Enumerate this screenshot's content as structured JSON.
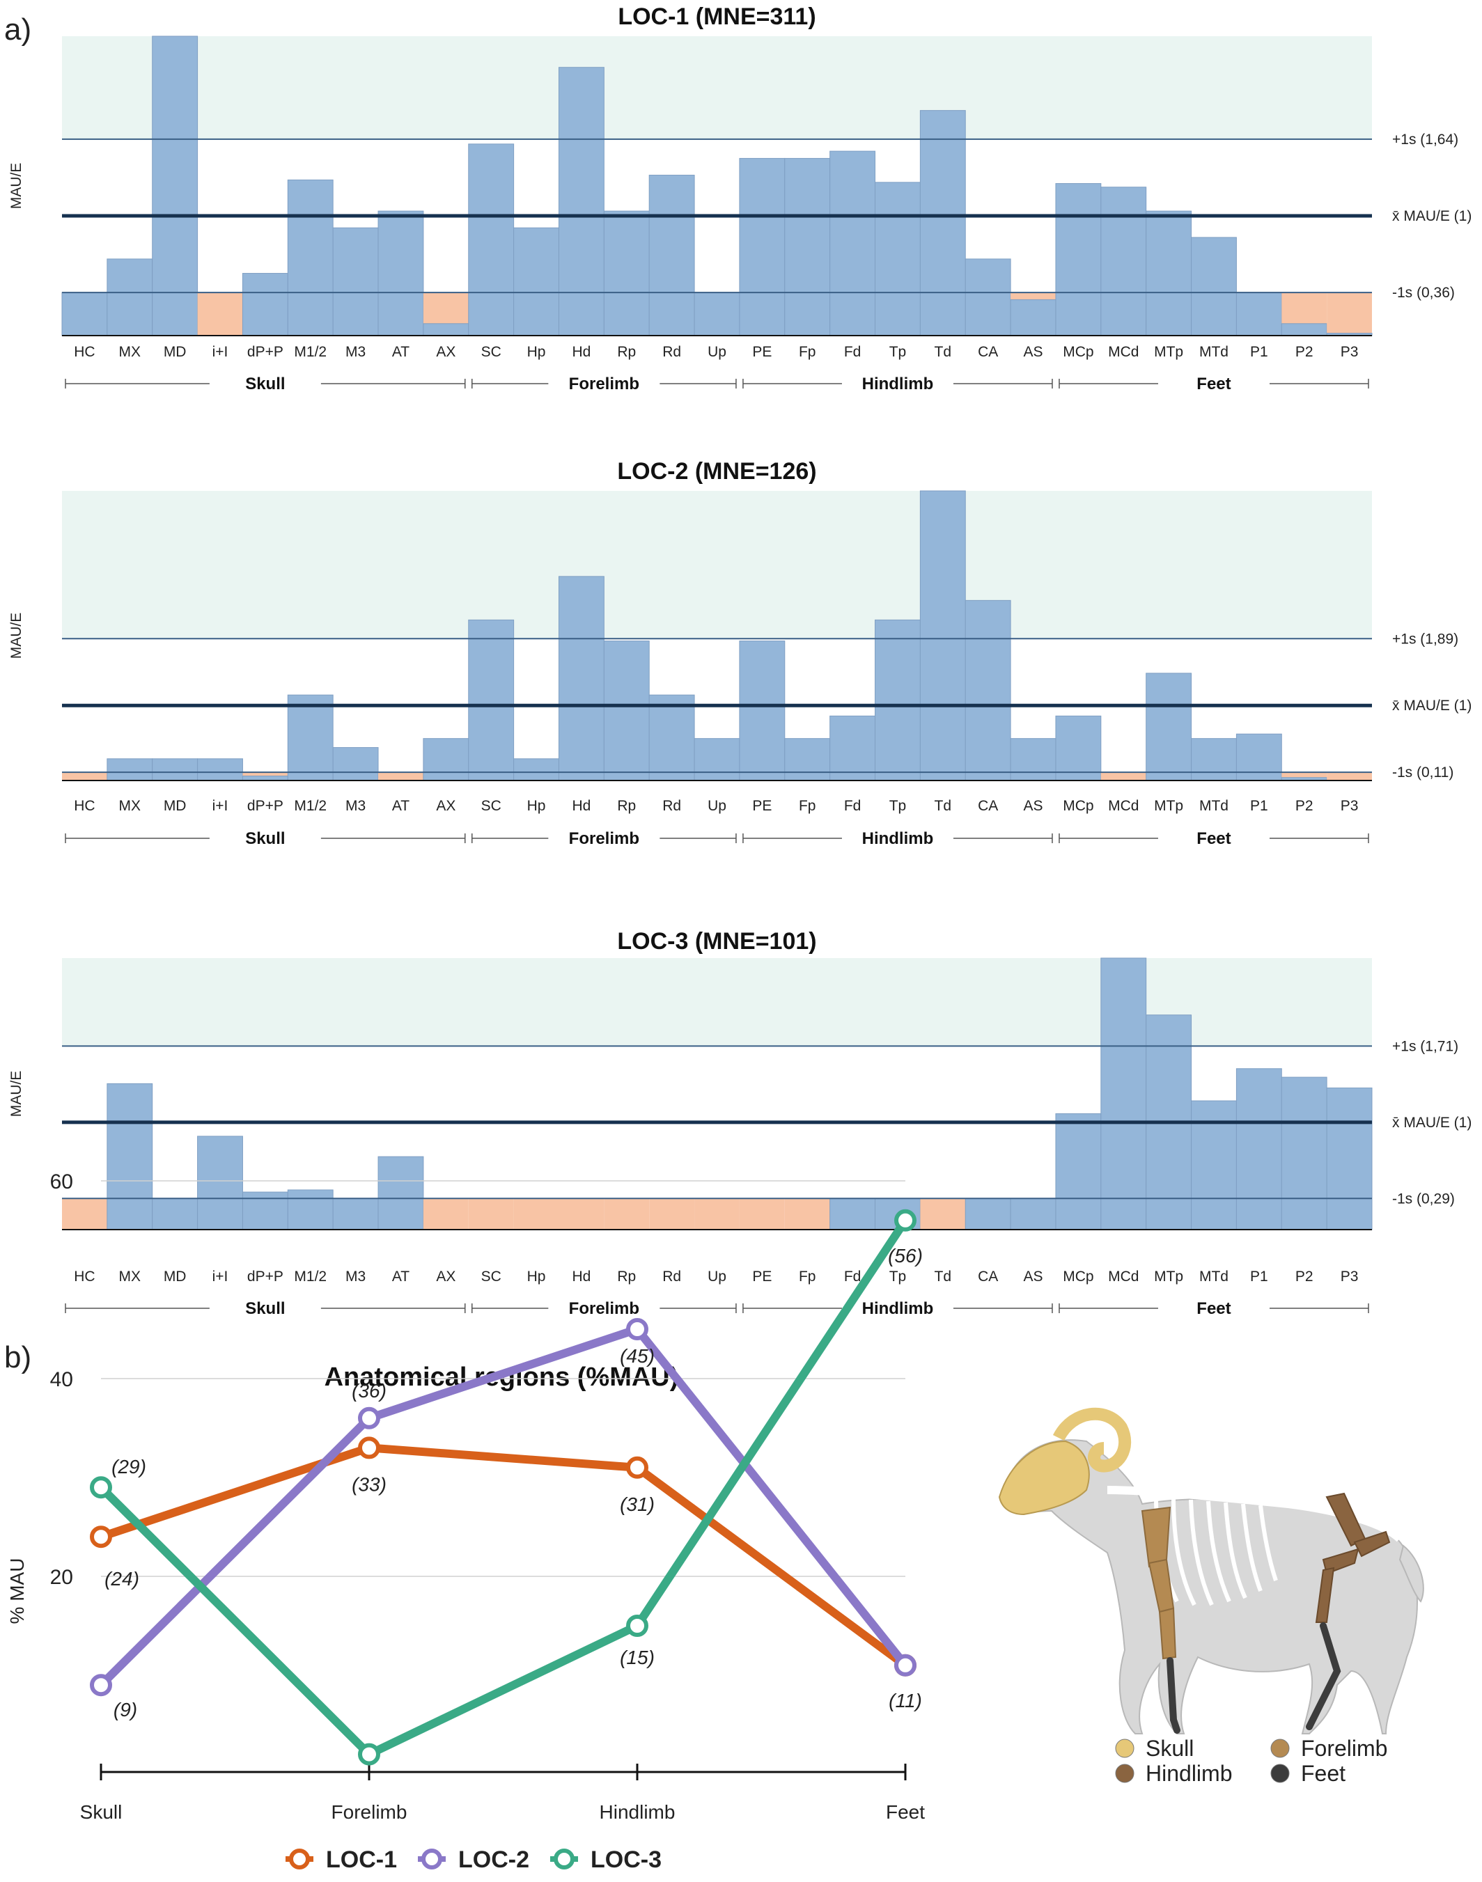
{
  "panel_labels": {
    "a": "a)",
    "b": "b)"
  },
  "colors": {
    "bar": "#94b6d9",
    "bar_stroke": "#7f9fc3",
    "low_bar": "#f8c4a5",
    "band": "#eaf5f2",
    "sd_line": "#3a5f86",
    "mean_line": "#16314f",
    "loc1": "#d8601a",
    "loc2": "#8a78c8",
    "loc3": "#3aaa86",
    "skull": "#e6c878",
    "forelimb": "#b48a52",
    "hindlimb": "#8a6440",
    "feet": "#3c3c3c"
  },
  "chart_data": [
    {
      "type": "bar",
      "title": "LOC-1 (MNE=311)",
      "ylabel": "MAU/E",
      "categories": [
        "HC",
        "MX",
        "MD",
        "i+I",
        "dP+P",
        "M1/2",
        "M3",
        "AT",
        "AX",
        "SC",
        "Hp",
        "Hd",
        "Rp",
        "Rd",
        "Up",
        "PE",
        "Fp",
        "Fd",
        "Tp",
        "Td",
        "CA",
        "AS",
        "MCp",
        "MCd",
        "MTp",
        "MTd",
        "P1",
        "P2",
        "P3"
      ],
      "values": [
        0.36,
        0.64,
        2.5,
        0,
        0.52,
        1.3,
        0.9,
        1.04,
        0.1,
        1.6,
        0.9,
        2.24,
        1.04,
        1.34,
        0.36,
        1.48,
        1.48,
        1.54,
        1.28,
        1.88,
        0.64,
        0.3,
        1.27,
        1.24,
        1.04,
        0.82,
        0.36,
        0.1,
        0.02
      ],
      "below_minus_1s": [
        false,
        false,
        false,
        true,
        false,
        false,
        false,
        false,
        true,
        false,
        false,
        false,
        false,
        false,
        false,
        false,
        false,
        false,
        false,
        false,
        false,
        true,
        false,
        false,
        false,
        false,
        false,
        true,
        true
      ],
      "ylim": [
        0,
        2.5
      ],
      "reference_lines": [
        {
          "label": "+1s (1,64)",
          "value": 1.64
        },
        {
          "label": "x̄ MAU/E (1)",
          "value": 1
        },
        {
          "label": "-1s (0,36)",
          "value": 0.36
        }
      ],
      "regions": [
        "Skull",
        "Forelimb",
        "Hindlimb",
        "Feet"
      ]
    },
    {
      "type": "bar",
      "title": "LOC-2 (MNE=126)",
      "ylabel": "MAU/E",
      "categories": [
        "HC",
        "MX",
        "MD",
        "i+I",
        "dP+P",
        "M1/2",
        "M3",
        "AT",
        "AX",
        "SC",
        "Hp",
        "Hd",
        "Rp",
        "Rd",
        "Up",
        "PE",
        "Fp",
        "Fd",
        "Tp",
        "Td",
        "CA",
        "AS",
        "MCp",
        "MCd",
        "MTp",
        "MTd",
        "P1",
        "P2",
        "P3"
      ],
      "values": [
        0,
        0.29,
        0.29,
        0.29,
        0.06,
        1.14,
        0.44,
        0,
        0.56,
        2.14,
        0.29,
        2.72,
        1.86,
        1.14,
        0.56,
        1.86,
        0.56,
        0.86,
        2.14,
        3.86,
        2.4,
        0.56,
        0.86,
        0,
        1.43,
        0.56,
        0.62,
        0.04,
        0
      ],
      "below_minus_1s": [
        true,
        false,
        false,
        false,
        true,
        false,
        false,
        true,
        false,
        false,
        false,
        false,
        false,
        false,
        false,
        false,
        false,
        false,
        false,
        false,
        false,
        false,
        false,
        true,
        false,
        false,
        false,
        true,
        true
      ],
      "ylim": [
        0,
        3.86
      ],
      "reference_lines": [
        {
          "label": "+1s (1,89)",
          "value": 1.89
        },
        {
          "label": "x̄ MAU/E (1)",
          "value": 1
        },
        {
          "label": "-1s (0,11)",
          "value": 0.11
        }
      ],
      "regions": [
        "Skull",
        "Forelimb",
        "Hindlimb",
        "Feet"
      ]
    },
    {
      "type": "bar",
      "title": "LOC-3 (MNE=101)",
      "ylabel": "MAU/E",
      "categories": [
        "HC",
        "MX",
        "MD",
        "i+I",
        "dP+P",
        "M1/2",
        "M3",
        "AT",
        "AX",
        "SC",
        "Hp",
        "Hd",
        "Rp",
        "Rd",
        "Up",
        "PE",
        "Fp",
        "Fd",
        "Tp",
        "Td",
        "CA",
        "AS",
        "MCp",
        "MCd",
        "MTp",
        "MTd",
        "P1",
        "P2",
        "P3"
      ],
      "values": [
        0,
        1.36,
        0.29,
        0.87,
        0.35,
        0.37,
        0.29,
        0.68,
        0,
        0,
        0,
        0,
        0,
        0,
        0,
        0,
        0,
        0.29,
        0.29,
        0,
        0.29,
        0.29,
        1.08,
        2.53,
        2.0,
        1.2,
        1.5,
        1.42,
        1.32
      ],
      "below_minus_1s": [
        true,
        false,
        false,
        false,
        false,
        false,
        false,
        false,
        true,
        true,
        true,
        true,
        true,
        true,
        true,
        true,
        true,
        false,
        false,
        true,
        false,
        false,
        false,
        false,
        false,
        false,
        false,
        false,
        false
      ],
      "ylim": [
        0,
        2.53
      ],
      "reference_lines": [
        {
          "label": "+1s (1,71)",
          "value": 1.71
        },
        {
          "label": "x̄ MAU/E (1)",
          "value": 1
        },
        {
          "label": "-1s (0,29)",
          "value": 0.29
        }
      ],
      "regions": [
        "Skull",
        "Forelimb",
        "Hindlimb",
        "Feet"
      ]
    },
    {
      "type": "line",
      "title": "Anatomical regions (%MAU)",
      "ylabel": "% MAU",
      "categories": [
        "Skull",
        "Forelimb",
        "Hindlimb",
        "Feet"
      ],
      "yticks": [
        20,
        40,
        60
      ],
      "ylim": [
        0,
        60
      ],
      "series": [
        {
          "name": "LOC-1",
          "values": [
            24,
            33,
            31,
            11
          ],
          "labels": [
            "(24)",
            "(33)",
            "(31)",
            "(11)"
          ]
        },
        {
          "name": "LOC-2",
          "values": [
            9,
            36,
            45,
            11
          ],
          "labels": [
            "(9)",
            "(36)",
            "(45)",
            ""
          ]
        },
        {
          "name": "LOC-3",
          "values": [
            29,
            2,
            15,
            56
          ],
          "labels": [
            "(29)",
            "",
            "(15)",
            "(56)"
          ]
        }
      ],
      "legend_placement": "bottom"
    }
  ],
  "skeleton_legend": [
    "Skull",
    "Forelimb",
    "Hindlimb",
    "Feet"
  ]
}
